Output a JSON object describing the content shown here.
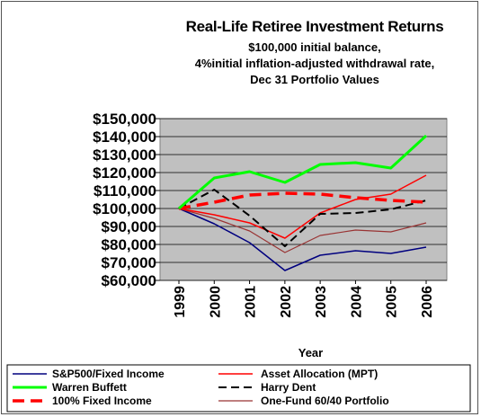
{
  "chart_data": {
    "type": "line",
    "title": "Real-Life Retiree Investment Returns",
    "subtitle_lines": [
      "$100,000 initial balance,",
      "4%initial inflation-adjusted withdrawal rate,",
      "Dec 31 Portfolio Values"
    ],
    "xlabel": "Year",
    "ylabel": "",
    "categories": [
      "1999",
      "2000",
      "2001",
      "2002",
      "2003",
      "2004",
      "2005",
      "2006"
    ],
    "ylim": [
      60000,
      150000
    ],
    "yticks": [
      60000,
      70000,
      80000,
      90000,
      100000,
      110000,
      120000,
      130000,
      140000,
      150000
    ],
    "ytick_labels": [
      "$60,000",
      "$70,000",
      "$80,000",
      "$90,000",
      "$100,000",
      "$110,000",
      "$120,000",
      "$130,000",
      "$140,000",
      "$150,000"
    ],
    "grid": true,
    "plot_background": "#c0c0c0",
    "legend_position": "bottom",
    "series": [
      {
        "name": "S&P500/Fixed Income",
        "color": "#00007f",
        "dash": "solid",
        "width": 1.5,
        "values": [
          100000,
          91500,
          81000,
          65500,
          74000,
          76500,
          75000,
          78500
        ]
      },
      {
        "name": "Asset Allocation (MPT)",
        "color": "#ff0000",
        "dash": "solid",
        "width": 1.5,
        "values": [
          100000,
          96500,
          92000,
          83500,
          97500,
          105000,
          108000,
          118500
        ]
      },
      {
        "name": "Warren Buffett",
        "color": "#00ff00",
        "dash": "solid",
        "width": 3,
        "values": [
          100000,
          117000,
          120500,
          114500,
          124500,
          125500,
          122500,
          140500
        ]
      },
      {
        "name": "Harry Dent",
        "color": "#000000",
        "dash": "long",
        "width": 2,
        "values": [
          100000,
          110500,
          96000,
          79000,
          97000,
          97500,
          99500,
          104500
        ]
      },
      {
        "name": "100% Fixed Income",
        "color": "#ff0000",
        "dash": "heavy",
        "width": 3.5,
        "values": [
          100000,
          103500,
          107500,
          108500,
          108000,
          106000,
          104500,
          103500
        ]
      },
      {
        "name": "One-Fund 60/40 Portfolio",
        "color": "#993333",
        "dash": "solid",
        "width": 1.2,
        "values": [
          100000,
          94500,
          87500,
          75500,
          85000,
          88000,
          87000,
          92000
        ]
      }
    ]
  }
}
